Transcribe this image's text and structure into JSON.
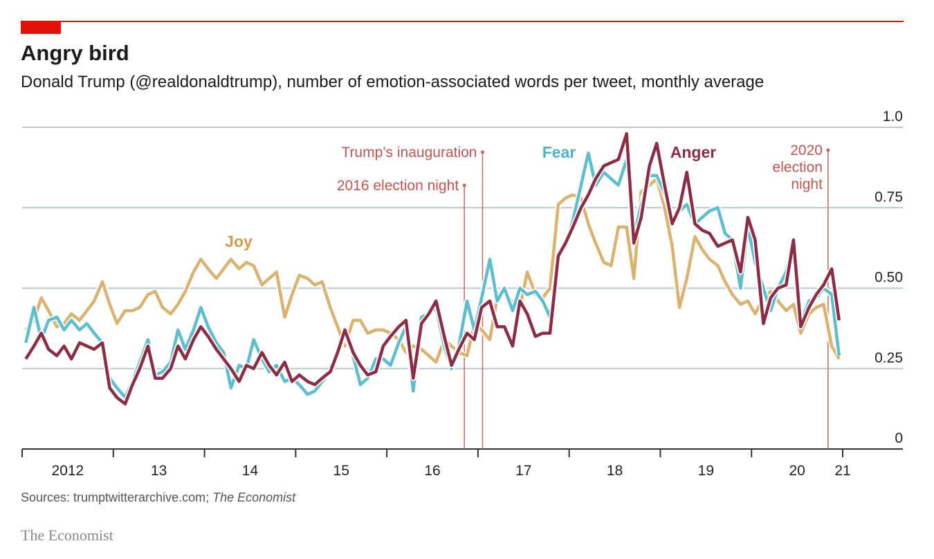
{
  "chart_data": {
    "type": "line",
    "title": "Angry bird",
    "subtitle": "Donald Trump (@realdonaldtrump), number of emotion-associated words per tweet, monthly average",
    "source": "Sources: trumptwitterarchive.com;",
    "source_italic": "The Economist",
    "brand": "The Economist",
    "x": [
      2012.04,
      2012.13,
      2012.21,
      2012.29,
      2012.38,
      2012.46,
      2012.54,
      2012.63,
      2012.71,
      2012.79,
      2012.88,
      2012.96,
      2013.04,
      2013.13,
      2013.21,
      2013.29,
      2013.38,
      2013.46,
      2013.54,
      2013.63,
      2013.71,
      2013.79,
      2013.88,
      2013.96,
      2014.04,
      2014.13,
      2014.21,
      2014.29,
      2014.38,
      2014.46,
      2014.54,
      2014.63,
      2014.71,
      2014.79,
      2014.88,
      2014.96,
      2015.04,
      2015.13,
      2015.21,
      2015.29,
      2015.38,
      2015.46,
      2015.54,
      2015.63,
      2015.71,
      2015.79,
      2015.88,
      2015.96,
      2016.04,
      2016.13,
      2016.21,
      2016.29,
      2016.38,
      2016.46,
      2016.54,
      2016.63,
      2016.71,
      2016.79,
      2016.88,
      2016.96,
      2017.04,
      2017.13,
      2017.21,
      2017.29,
      2017.38,
      2017.46,
      2017.54,
      2017.63,
      2017.71,
      2017.79,
      2017.88,
      2017.96,
      2018.04,
      2018.13,
      2018.21,
      2018.29,
      2018.38,
      2018.46,
      2018.54,
      2018.63,
      2018.71,
      2018.79,
      2018.88,
      2018.96,
      2019.04,
      2019.13,
      2019.21,
      2019.29,
      2019.38,
      2019.46,
      2019.54,
      2019.63,
      2019.71,
      2019.79,
      2019.88,
      2019.96,
      2020.04,
      2020.13,
      2020.21,
      2020.29,
      2020.38,
      2020.46,
      2020.54,
      2020.63,
      2020.71,
      2020.79,
      2020.88,
      2020.96
    ],
    "series": [
      {
        "name": "Joy",
        "color": "#dcb36e",
        "label_color": "#d39c4a",
        "values": [
          0.37,
          0.4,
          0.47,
          0.43,
          0.38,
          0.39,
          0.42,
          0.4,
          0.43,
          0.46,
          0.52,
          0.45,
          0.39,
          0.43,
          0.43,
          0.44,
          0.48,
          0.49,
          0.44,
          0.42,
          0.45,
          0.49,
          0.55,
          0.59,
          0.56,
          0.53,
          0.56,
          0.59,
          0.56,
          0.58,
          0.57,
          0.51,
          0.53,
          0.55,
          0.41,
          0.48,
          0.54,
          0.53,
          0.51,
          0.52,
          0.44,
          0.38,
          0.32,
          0.4,
          0.4,
          0.36,
          0.37,
          0.37,
          0.36,
          0.34,
          0.3,
          0.32,
          0.31,
          0.29,
          0.27,
          0.34,
          0.32,
          0.3,
          0.29,
          0.39,
          0.37,
          0.34,
          0.47,
          0.5,
          0.45,
          0.44,
          0.55,
          0.48,
          0.47,
          0.5,
          0.76,
          0.78,
          0.79,
          0.78,
          0.7,
          0.64,
          0.58,
          0.57,
          0.69,
          0.69,
          0.53,
          0.8,
          0.82,
          0.84,
          0.76,
          0.63,
          0.44,
          0.53,
          0.66,
          0.62,
          0.59,
          0.57,
          0.52,
          0.48,
          0.45,
          0.46,
          0.42,
          0.47,
          0.49,
          0.46,
          0.43,
          0.45,
          0.36,
          0.42,
          0.44,
          0.45,
          0.32,
          0.28
        ]
      },
      {
        "name": "Fear",
        "color": "#5bbfd0",
        "label_color": "#4fb3c8",
        "values": [
          0.33,
          0.44,
          0.34,
          0.4,
          0.41,
          0.37,
          0.4,
          0.37,
          0.39,
          0.36,
          0.33,
          0.22,
          0.19,
          0.16,
          0.21,
          0.27,
          0.34,
          0.23,
          0.24,
          0.27,
          0.37,
          0.31,
          0.37,
          0.44,
          0.38,
          0.33,
          0.3,
          0.19,
          0.26,
          0.25,
          0.34,
          0.28,
          0.24,
          0.26,
          0.21,
          0.22,
          0.2,
          0.17,
          0.18,
          0.21,
          0.24,
          0.29,
          0.36,
          0.29,
          0.2,
          0.22,
          0.28,
          0.28,
          0.26,
          0.33,
          0.38,
          0.18,
          0.41,
          0.42,
          0.44,
          0.32,
          0.25,
          0.32,
          0.46,
          0.37,
          0.47,
          0.59,
          0.46,
          0.5,
          0.43,
          0.5,
          0.48,
          0.49,
          0.46,
          0.41,
          0.6,
          0.63,
          0.71,
          0.82,
          0.92,
          0.82,
          0.86,
          0.84,
          0.82,
          0.9,
          0.66,
          0.76,
          0.85,
          0.85,
          0.8,
          0.72,
          0.74,
          0.76,
          0.7,
          0.72,
          0.74,
          0.75,
          0.67,
          0.65,
          0.5,
          0.69,
          0.58,
          0.5,
          0.43,
          0.5,
          0.55,
          0.64,
          0.39,
          0.46,
          0.47,
          0.5,
          0.48,
          0.29
        ]
      },
      {
        "name": "Anger",
        "color": "#8c2c45",
        "label_color": "#8c2c45",
        "values": [
          0.28,
          0.32,
          0.36,
          0.31,
          0.29,
          0.32,
          0.28,
          0.33,
          0.32,
          0.31,
          0.33,
          0.19,
          0.16,
          0.14,
          0.2,
          0.25,
          0.32,
          0.22,
          0.22,
          0.25,
          0.32,
          0.28,
          0.34,
          0.38,
          0.35,
          0.31,
          0.28,
          0.25,
          0.21,
          0.26,
          0.25,
          0.3,
          0.26,
          0.23,
          0.27,
          0.21,
          0.23,
          0.21,
          0.2,
          0.22,
          0.24,
          0.3,
          0.37,
          0.3,
          0.26,
          0.23,
          0.24,
          0.32,
          0.35,
          0.38,
          0.4,
          0.22,
          0.39,
          0.42,
          0.46,
          0.35,
          0.26,
          0.31,
          0.36,
          0.34,
          0.44,
          0.46,
          0.38,
          0.38,
          0.32,
          0.46,
          0.42,
          0.35,
          0.36,
          0.36,
          0.6,
          0.64,
          0.69,
          0.75,
          0.79,
          0.84,
          0.88,
          0.89,
          0.9,
          0.98,
          0.64,
          0.72,
          0.88,
          0.95,
          0.83,
          0.7,
          0.75,
          0.86,
          0.7,
          0.68,
          0.67,
          0.63,
          0.64,
          0.65,
          0.55,
          0.72,
          0.65,
          0.39,
          0.47,
          0.5,
          0.51,
          0.65,
          0.38,
          0.44,
          0.48,
          0.51,
          0.56,
          0.4
        ]
      }
    ],
    "xlim": [
      2012,
      2021.66
    ],
    "xticks": [
      2012,
      2013,
      2014,
      2015,
      2016,
      2017,
      2018,
      2019,
      2020,
      2021
    ],
    "xtick_labels": [
      {
        "value": 2012.5,
        "label": "2012"
      },
      {
        "value": 2013.5,
        "label": "13"
      },
      {
        "value": 2014.5,
        "label": "14"
      },
      {
        "value": 2015.5,
        "label": "15"
      },
      {
        "value": 2016.5,
        "label": "16"
      },
      {
        "value": 2017.5,
        "label": "17"
      },
      {
        "value": 2018.5,
        "label": "18"
      },
      {
        "value": 2019.5,
        "label": "19"
      },
      {
        "value": 2020.5,
        "label": "20"
      },
      {
        "value": 2021,
        "label": "21"
      }
    ],
    "ylim": [
      0,
      1
    ],
    "yticks": [
      0,
      0.25,
      {
        "value": 0.5,
        "label": "0.50"
      },
      0.75,
      {
        "value": 1,
        "label": "1.0"
      }
    ],
    "grid": true,
    "annotations": [
      {
        "x": 2016.85,
        "lines": [
          "2016 election night"
        ]
      },
      {
        "x": 2017.05,
        "lines": [
          "Trump’s inauguration"
        ]
      },
      {
        "x": 2020.84,
        "lines": [
          "2020",
          "election",
          "night"
        ]
      }
    ]
  }
}
